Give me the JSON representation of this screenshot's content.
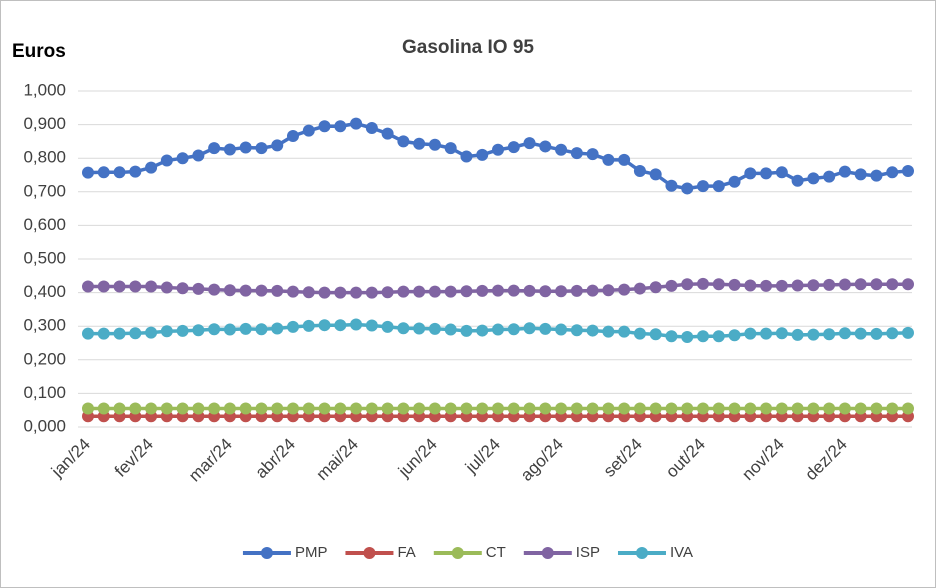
{
  "chart_data": {
    "type": "line",
    "title": "Gasolina IO 95",
    "y_label": "Euros",
    "categories": [
      "jan/24",
      null,
      null,
      null,
      "fev/24",
      null,
      null,
      null,
      null,
      "mar/24",
      null,
      null,
      null,
      "abr/24",
      null,
      null,
      null,
      "mai/24",
      null,
      null,
      null,
      null,
      "jun/24",
      null,
      null,
      null,
      "jul/24",
      null,
      null,
      null,
      "ago/24",
      null,
      null,
      null,
      null,
      "set/24",
      null,
      null,
      null,
      "out/24",
      null,
      null,
      null,
      null,
      "nov/24",
      null,
      null,
      null,
      "dez/24",
      null,
      null,
      null,
      null
    ],
    "series": [
      {
        "name": "PMP",
        "color": "#4472c4",
        "values": [
          0.757,
          0.758,
          0.758,
          0.76,
          0.772,
          0.793,
          0.8,
          0.808,
          0.83,
          0.826,
          0.832,
          0.83,
          0.838,
          0.866,
          0.882,
          0.895,
          0.895,
          0.903,
          0.89,
          0.873,
          0.85,
          0.843,
          0.84,
          0.83,
          0.805,
          0.81,
          0.825,
          0.833,
          0.845,
          0.835,
          0.825,
          0.815,
          0.812,
          0.795,
          0.795,
          0.762,
          0.752,
          0.718,
          0.71,
          0.717,
          0.717,
          0.73,
          0.755,
          0.755,
          0.758,
          0.733,
          0.74,
          0.745,
          0.76,
          0.752,
          0.748,
          0.758,
          0.762
        ]
      },
      {
        "name": "FA",
        "color": "#c0504d",
        "values": [
          0.032,
          0.032,
          0.032,
          0.032,
          0.032,
          0.032,
          0.032,
          0.032,
          0.032,
          0.032,
          0.032,
          0.032,
          0.032,
          0.032,
          0.032,
          0.032,
          0.032,
          0.032,
          0.032,
          0.032,
          0.032,
          0.032,
          0.032,
          0.032,
          0.032,
          0.032,
          0.032,
          0.032,
          0.032,
          0.032,
          0.032,
          0.032,
          0.032,
          0.032,
          0.032,
          0.032,
          0.032,
          0.032,
          0.032,
          0.032,
          0.032,
          0.032,
          0.032,
          0.032,
          0.032,
          0.032,
          0.032,
          0.032,
          0.032,
          0.032,
          0.032,
          0.032,
          0.032
        ]
      },
      {
        "name": "CT",
        "color": "#9bbb59",
        "values": [
          0.055,
          0.055,
          0.055,
          0.055,
          0.055,
          0.055,
          0.055,
          0.055,
          0.055,
          0.055,
          0.055,
          0.055,
          0.055,
          0.055,
          0.055,
          0.055,
          0.055,
          0.055,
          0.055,
          0.055,
          0.055,
          0.055,
          0.055,
          0.055,
          0.055,
          0.055,
          0.055,
          0.055,
          0.055,
          0.055,
          0.055,
          0.055,
          0.055,
          0.055,
          0.055,
          0.055,
          0.055,
          0.055,
          0.055,
          0.055,
          0.055,
          0.055,
          0.055,
          0.055,
          0.055,
          0.055,
          0.055,
          0.055,
          0.055,
          0.055,
          0.055,
          0.055,
          0.055
        ]
      },
      {
        "name": "ISP",
        "color": "#8064a2",
        "values": [
          0.418,
          0.418,
          0.418,
          0.418,
          0.418,
          0.415,
          0.413,
          0.411,
          0.409,
          0.407,
          0.406,
          0.406,
          0.405,
          0.403,
          0.401,
          0.4,
          0.4,
          0.4,
          0.4,
          0.401,
          0.403,
          0.403,
          0.403,
          0.403,
          0.404,
          0.405,
          0.406,
          0.406,
          0.405,
          0.404,
          0.404,
          0.405,
          0.406,
          0.407,
          0.409,
          0.412,
          0.416,
          0.42,
          0.425,
          0.426,
          0.425,
          0.423,
          0.421,
          0.42,
          0.42,
          0.421,
          0.422,
          0.423,
          0.424,
          0.425,
          0.425,
          0.425,
          0.425
        ]
      },
      {
        "name": "IVA",
        "color": "#4bacc6",
        "values": [
          0.278,
          0.278,
          0.278,
          0.279,
          0.281,
          0.285,
          0.286,
          0.288,
          0.291,
          0.29,
          0.292,
          0.291,
          0.293,
          0.298,
          0.301,
          0.303,
          0.303,
          0.305,
          0.302,
          0.298,
          0.294,
          0.293,
          0.292,
          0.29,
          0.286,
          0.287,
          0.29,
          0.291,
          0.294,
          0.292,
          0.29,
          0.288,
          0.287,
          0.284,
          0.284,
          0.278,
          0.276,
          0.27,
          0.268,
          0.27,
          0.27,
          0.273,
          0.278,
          0.278,
          0.279,
          0.274,
          0.275,
          0.276,
          0.279,
          0.278,
          0.277,
          0.279,
          0.28
        ]
      }
    ],
    "ylim": [
      0,
      1
    ],
    "yticks": [
      {
        "value": 0,
        "label": "0,000"
      },
      {
        "value": 0.1,
        "label": "0,100"
      },
      {
        "value": 0.2,
        "label": "0,200"
      },
      {
        "value": 0.3,
        "label": "0,300"
      },
      {
        "value": 0.4,
        "label": "0,400"
      },
      {
        "value": 0.5,
        "label": "0,500"
      },
      {
        "value": 0.6,
        "label": "0,600"
      },
      {
        "value": 0.7,
        "label": "0,700"
      },
      {
        "value": 0.8,
        "label": "0,800"
      },
      {
        "value": 0.9,
        "label": "0,900"
      },
      {
        "value": 1,
        "label": "1,000"
      }
    ],
    "grid": true,
    "legend": "bottom"
  }
}
